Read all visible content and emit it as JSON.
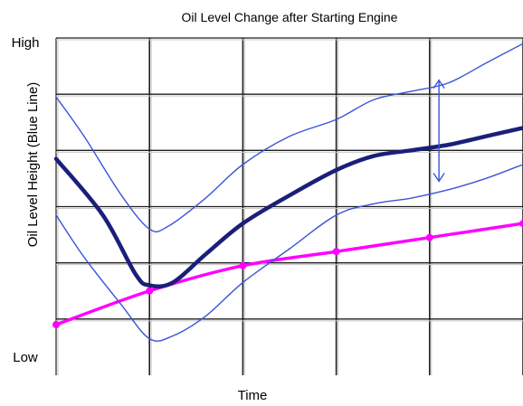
{
  "chart_data": {
    "type": "line",
    "title": "Oil Level Change after Starting Engine",
    "xlabel": "Time",
    "ylabel": "Oil Level Height (Blue Line)",
    "y_tick_labels": {
      "top": "High",
      "bottom": "Low"
    },
    "grid": true,
    "legend": "none",
    "xlim": [
      0,
      5
    ],
    "ylim": [
      0,
      6
    ],
    "series": [
      {
        "role": "oil-level-mean",
        "color": "#1b1f7a",
        "x": [
          0,
          0.5,
          0.85,
          1.0,
          1.25,
          1.6,
          2.0,
          2.5,
          3.0,
          3.4,
          3.8,
          4.2,
          4.6,
          5.0
        ],
        "y": [
          3.85,
          2.85,
          1.8,
          1.6,
          1.65,
          2.15,
          2.7,
          3.2,
          3.65,
          3.9,
          4.0,
          4.1,
          4.25,
          4.4
        ]
      },
      {
        "role": "oil-level-upper-bound",
        "color": "#3a55d6",
        "x": [
          0,
          0.3,
          0.7,
          1.0,
          1.2,
          1.6,
          2.0,
          2.5,
          3.0,
          3.4,
          3.8,
          4.2,
          4.6,
          5.0
        ],
        "y": [
          4.95,
          4.25,
          3.2,
          2.6,
          2.65,
          3.15,
          3.75,
          4.25,
          4.55,
          4.9,
          5.05,
          5.2,
          5.55,
          5.9
        ]
      },
      {
        "role": "oil-level-lower-bound",
        "color": "#3a55d6",
        "x": [
          0,
          0.3,
          0.7,
          1.0,
          1.25,
          1.6,
          2.0,
          2.5,
          3.0,
          3.4,
          3.8,
          4.2,
          4.6,
          5.0
        ],
        "y": [
          2.85,
          2.1,
          1.25,
          0.65,
          0.7,
          1.05,
          1.65,
          2.25,
          2.85,
          3.05,
          3.15,
          3.3,
          3.5,
          3.75
        ]
      },
      {
        "role": "reference-line",
        "color": "#ff00ff",
        "x": [
          0,
          1.0,
          2.0,
          3.0,
          4.0,
          5.0
        ],
        "y": [
          0.9,
          1.5,
          1.95,
          2.2,
          2.45,
          2.7
        ]
      }
    ],
    "annotations": [
      {
        "type": "double-arrow",
        "color": "#3a55d6",
        "x": 4.1,
        "y_from": 3.45,
        "y_to": 5.25
      }
    ]
  }
}
